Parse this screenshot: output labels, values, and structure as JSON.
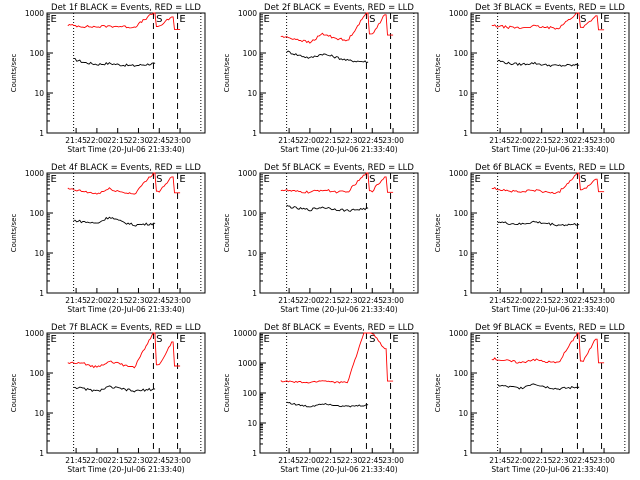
{
  "chart_data": [
    {
      "type": "line",
      "title": "Det 1f BLACK = Events, RED = LLD",
      "xlabel": "Start Time (20-Jul-06 21:33:40)",
      "ylabel": "Counts/sec",
      "ylim": [
        1,
        1000
      ],
      "yscale": "log",
      "x_ticks": [
        "21:45",
        "22:00",
        "22:15",
        "22:30",
        "22:45",
        "23:00"
      ],
      "y_ticks": [
        "1",
        "10",
        "100",
        "1000"
      ],
      "markers": [
        "E",
        "S",
        "E"
      ],
      "series": [
        {
          "name": "BLACK = Events",
          "color": "#000000",
          "x": [
            21.72,
            21.85,
            22.0,
            22.15,
            22.3,
            22.45,
            22.7
          ],
          "y": [
            70,
            58,
            52,
            55,
            50,
            48,
            55
          ]
        },
        {
          "name": "RED = LLD",
          "color": "#ff0000",
          "x": [
            21.65,
            21.85,
            22.0,
            22.15,
            22.3,
            22.45,
            22.68,
            22.75,
            22.9,
            23.0
          ],
          "y": [
            500,
            460,
            450,
            470,
            460,
            440,
            1000,
            460,
            800,
            390
          ]
        }
      ]
    },
    {
      "type": "line",
      "title": "Det 2f BLACK = Events, RED = LLD",
      "xlabel": "Start Time (20-Jul-06 21:33:40)",
      "ylabel": "Counts/sec",
      "ylim": [
        1,
        1000
      ],
      "yscale": "log",
      "x_ticks": [
        "21:45",
        "22:00",
        "22:15",
        "22:30",
        "22:45",
        "23:00"
      ],
      "y_ticks": [
        "1",
        "10",
        "100",
        "1000"
      ],
      "markers": [
        "E",
        "S",
        "E"
      ],
      "series": [
        {
          "name": "BLACK = Events",
          "color": "#000000",
          "x": [
            21.72,
            21.85,
            22.0,
            22.15,
            22.3,
            22.45,
            22.7
          ],
          "y": [
            110,
            90,
            75,
            95,
            80,
            65,
            60
          ]
        },
        {
          "name": "RED = LLD",
          "color": "#ff0000",
          "x": [
            21.65,
            21.85,
            22.0,
            22.15,
            22.3,
            22.45,
            22.68,
            22.75,
            22.9,
            23.0
          ],
          "y": [
            260,
            220,
            180,
            300,
            240,
            200,
            1000,
            300,
            900,
            280
          ]
        }
      ]
    },
    {
      "type": "line",
      "title": "Det 3f BLACK = Events, RED = LLD",
      "xlabel": "Start Time (20-Jul-06 21:33:40)",
      "ylabel": "Counts/sec",
      "ylim": [
        1,
        1000
      ],
      "yscale": "log",
      "x_ticks": [
        "21:45",
        "22:00",
        "22:15",
        "22:30",
        "22:45",
        "23:00"
      ],
      "y_ticks": [
        "1",
        "10",
        "100",
        "1000"
      ],
      "markers": [
        "E",
        "S",
        "E"
      ],
      "series": [
        {
          "name": "BLACK = Events",
          "color": "#000000",
          "x": [
            21.72,
            21.85,
            22.0,
            22.15,
            22.3,
            22.45,
            22.7
          ],
          "y": [
            65,
            55,
            52,
            56,
            50,
            48,
            50
          ]
        },
        {
          "name": "RED = LLD",
          "color": "#ff0000",
          "x": [
            21.65,
            21.85,
            22.0,
            22.15,
            22.3,
            22.45,
            22.68,
            22.75,
            22.9,
            23.0
          ],
          "y": [
            480,
            440,
            420,
            470,
            430,
            420,
            1000,
            440,
            850,
            380
          ]
        }
      ]
    },
    {
      "type": "line",
      "title": "Det 4f BLACK = Events, RED = LLD",
      "xlabel": "Start Time (20-Jul-06 21:33:40)",
      "ylabel": "Counts/sec",
      "ylim": [
        1,
        1000
      ],
      "yscale": "log",
      "x_ticks": [
        "21:45",
        "22:00",
        "22:15",
        "22:30",
        "22:45",
        "23:00"
      ],
      "y_ticks": [
        "1",
        "10",
        "100",
        "1000"
      ],
      "markers": [
        "E",
        "S",
        "E"
      ],
      "series": [
        {
          "name": "BLACK = Events",
          "color": "#000000",
          "x": [
            21.72,
            21.85,
            22.0,
            22.15,
            22.3,
            22.45,
            22.7
          ],
          "y": [
            65,
            60,
            55,
            80,
            60,
            50,
            55
          ]
        },
        {
          "name": "RED = LLD",
          "color": "#ff0000",
          "x": [
            21.65,
            21.85,
            22.0,
            22.15,
            22.3,
            22.45,
            22.68,
            22.75,
            22.9,
            23.0
          ],
          "y": [
            400,
            340,
            300,
            400,
            330,
            300,
            1000,
            350,
            800,
            320
          ]
        }
      ]
    },
    {
      "type": "line",
      "title": "Det 5f BLACK = Events, RED = LLD",
      "xlabel": "Start Time (20-Jul-06 21:33:40)",
      "ylabel": "Counts/sec",
      "ylim": [
        1,
        1000
      ],
      "yscale": "log",
      "x_ticks": [
        "21:45",
        "22:00",
        "22:15",
        "22:30",
        "22:45",
        "23:00"
      ],
      "y_ticks": [
        "1",
        "10",
        "100",
        "1000"
      ],
      "markers": [
        "E",
        "S",
        "E"
      ],
      "series": [
        {
          "name": "BLACK = Events",
          "color": "#000000",
          "x": [
            21.72,
            21.85,
            22.0,
            22.15,
            22.3,
            22.45,
            22.7
          ],
          "y": [
            150,
            130,
            120,
            140,
            125,
            115,
            130
          ]
        },
        {
          "name": "RED = LLD",
          "color": "#ff0000",
          "x": [
            21.65,
            21.85,
            22.0,
            22.15,
            22.3,
            22.45,
            22.68,
            22.75,
            22.9,
            23.0
          ],
          "y": [
            380,
            340,
            330,
            380,
            340,
            330,
            1000,
            360,
            800,
            330
          ]
        }
      ]
    },
    {
      "type": "line",
      "title": "Det 6f BLACK = Events, RED = LLD",
      "xlabel": "Start Time (20-Jul-06 21:33:40)",
      "ylabel": "Counts/sec",
      "ylim": [
        1,
        1000
      ],
      "yscale": "log",
      "x_ticks": [
        "21:45",
        "22:00",
        "22:15",
        "22:30",
        "22:45",
        "23:00"
      ],
      "y_ticks": [
        "1",
        "10",
        "100",
        "1000"
      ],
      "markers": [
        "E",
        "S",
        "E"
      ],
      "series": [
        {
          "name": "BLACK = Events",
          "color": "#000000",
          "x": [
            21.72,
            21.85,
            22.0,
            22.15,
            22.3,
            22.45,
            22.7
          ],
          "y": [
            60,
            55,
            52,
            60,
            55,
            50,
            52
          ]
        },
        {
          "name": "RED = LLD",
          "color": "#ff0000",
          "x": [
            21.65,
            21.85,
            22.0,
            22.15,
            22.3,
            22.45,
            22.68,
            22.75,
            22.9,
            23.0
          ],
          "y": [
            420,
            360,
            330,
            380,
            330,
            320,
            1000,
            380,
            700,
            340
          ]
        }
      ]
    },
    {
      "type": "line",
      "title": "Det 7f BLACK = Events, RED = LLD",
      "xlabel": "Start Time (20-Jul-06 21:33:40)",
      "ylabel": "Counts/sec",
      "ylim": [
        1,
        1000
      ],
      "yscale": "log",
      "x_ticks": [
        "21:45",
        "22:00",
        "22:15",
        "22:30",
        "22:45",
        "23:00"
      ],
      "y_ticks": [
        "1",
        "10",
        "100",
        "1000"
      ],
      "markers": [
        "E",
        "S",
        "E"
      ],
      "series": [
        {
          "name": "BLACK = Events",
          "color": "#000000",
          "x": [
            21.72,
            21.85,
            22.0,
            22.15,
            22.3,
            22.45,
            22.7
          ],
          "y": [
            45,
            40,
            35,
            45,
            40,
            35,
            40
          ]
        },
        {
          "name": "RED = LLD",
          "color": "#ff0000",
          "x": [
            21.65,
            21.85,
            22.0,
            22.15,
            22.3,
            22.45,
            22.68,
            22.75,
            22.9,
            23.0
          ],
          "y": [
            180,
            170,
            140,
            200,
            160,
            140,
            1000,
            160,
            600,
            150
          ]
        }
      ]
    },
    {
      "type": "line",
      "title": "Det 8f BLACK = Events, RED = LLD",
      "xlabel": "Start Time (20-Jul-06 21:33:40)",
      "ylabel": "Counts/sec",
      "ylim": [
        1,
        10000
      ],
      "yscale": "log",
      "x_ticks": [
        "21:45",
        "22:00",
        "22:15",
        "22:30",
        "22:45",
        "23:00"
      ],
      "y_ticks": [
        "1",
        "10",
        "100",
        "1000",
        "10000"
      ],
      "markers": [
        "E",
        "S",
        "E"
      ],
      "series": [
        {
          "name": "BLACK = Events",
          "color": "#000000",
          "x": [
            21.72,
            21.85,
            22.0,
            22.15,
            22.3,
            22.45,
            22.7
          ],
          "y": [
            50,
            40,
            35,
            45,
            40,
            35,
            40
          ]
        },
        {
          "name": "RED = LLD",
          "color": "#ff0000",
          "x": [
            21.65,
            21.85,
            22.0,
            22.15,
            22.3,
            22.45,
            22.65,
            22.75,
            22.9,
            23.0
          ],
          "y": [
            250,
            230,
            220,
            260,
            230,
            220,
            10000,
            10000,
            3000,
            250
          ]
        }
      ]
    },
    {
      "type": "line",
      "title": "Det 9f BLACK = Events, RED = LLD",
      "xlabel": "Start Time (20-Jul-06 21:33:40)",
      "ylabel": "Counts/sec",
      "ylim": [
        1,
        1000
      ],
      "yscale": "log",
      "x_ticks": [
        "21:45",
        "22:00",
        "22:15",
        "22:30",
        "22:45",
        "23:00"
      ],
      "y_ticks": [
        "1",
        "10",
        "100",
        "1000"
      ],
      "markers": [
        "E",
        "S",
        "E"
      ],
      "series": [
        {
          "name": "BLACK = Events",
          "color": "#000000",
          "x": [
            21.72,
            21.85,
            22.0,
            22.15,
            22.3,
            22.45,
            22.7
          ],
          "y": [
            50,
            45,
            42,
            55,
            45,
            40,
            45
          ]
        },
        {
          "name": "RED = LLD",
          "color": "#ff0000",
          "x": [
            21.65,
            21.85,
            22.0,
            22.15,
            22.3,
            22.45,
            22.68,
            22.75,
            22.9,
            23.0
          ],
          "y": [
            230,
            200,
            180,
            220,
            190,
            180,
            1000,
            200,
            700,
            180
          ]
        }
      ]
    }
  ]
}
